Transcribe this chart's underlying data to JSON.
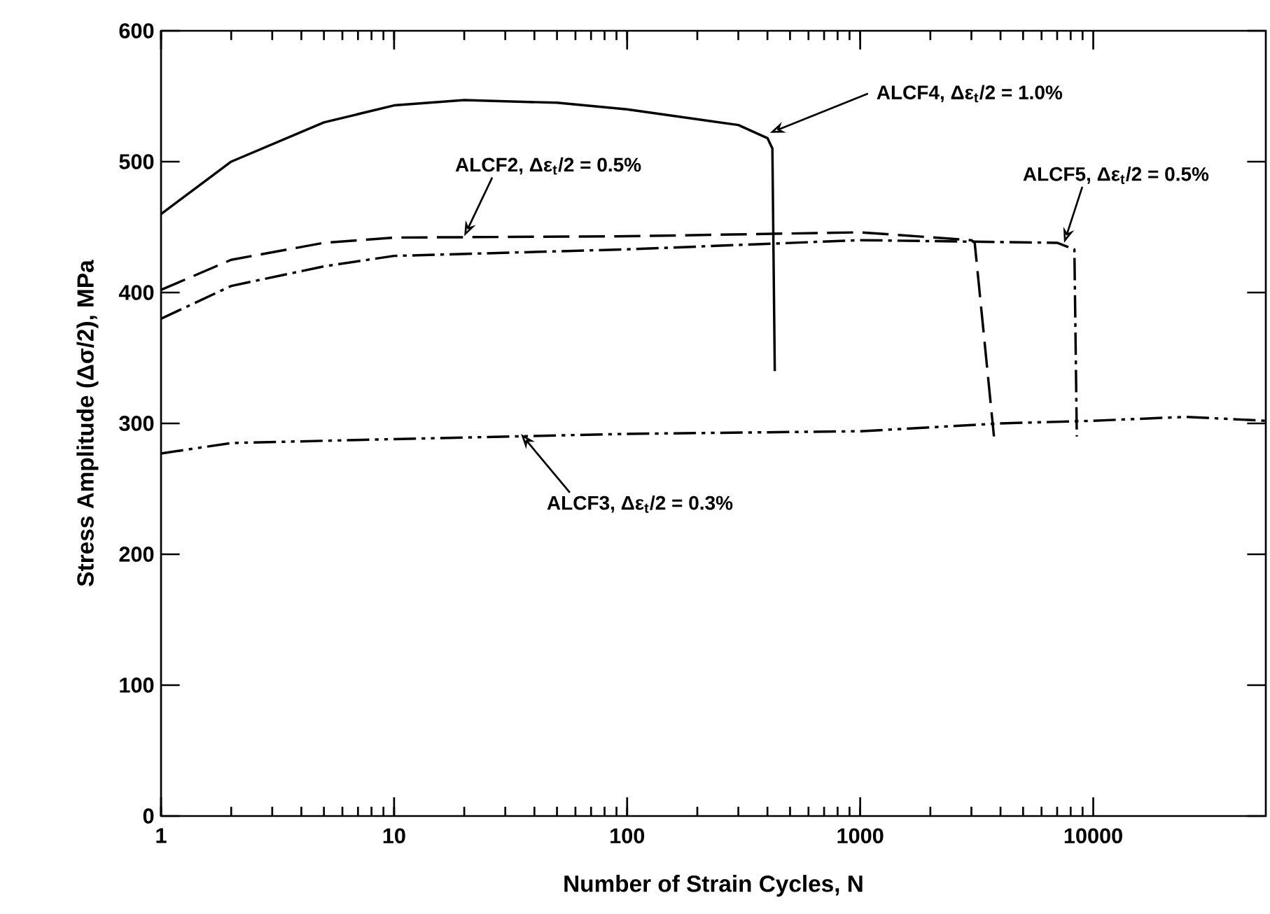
{
  "chart_data": {
    "type": "line",
    "xlabel": "Number of Strain Cycles, N",
    "ylabel": "Stress Amplitude (Δσ/2), MPa",
    "log": "x",
    "xlim": [
      1,
      55000
    ],
    "xticks": [
      1,
      10,
      100,
      1000,
      10000
    ],
    "ylim": [
      0,
      600
    ],
    "yticks": [
      0,
      100,
      200,
      300,
      400,
      500,
      600
    ],
    "marker": "none",
    "series": [
      {
        "color": "#000000",
        "line_style": "solid",
        "x": [
          1,
          2,
          5,
          10,
          20,
          50,
          100,
          300,
          400,
          420,
          430
        ],
        "values": [
          460,
          500,
          530,
          543,
          547,
          545,
          540,
          528,
          518,
          510,
          340
        ]
      },
      {
        "color": "#000000",
        "line_style": "dashed",
        "x": [
          1,
          2,
          5,
          10,
          100,
          1000,
          3000,
          3100,
          3750
        ],
        "values": [
          402,
          425,
          438,
          442,
          443,
          446,
          440,
          438,
          290
        ]
      },
      {
        "color": "#000000",
        "line_style": "dashdot",
        "x": [
          1,
          2,
          5,
          10,
          100,
          1000,
          7000,
          8300,
          8500
        ],
        "values": [
          380,
          405,
          420,
          428,
          433,
          440,
          438,
          433,
          290
        ]
      },
      {
        "color": "#000000",
        "line_style": "dashdotdot",
        "x": [
          1,
          2,
          10,
          100,
          1000,
          2000,
          4000,
          10000,
          25000,
          55000
        ],
        "values": [
          277,
          285,
          288,
          292,
          294,
          297,
          300,
          302,
          305,
          302
        ]
      }
    ],
    "annotations": [
      {
        "text": "ALCF4, Δε$_{t}$/2 = 1.0%",
        "x": 410,
        "y": 522
      },
      {
        "text": "ALCF2, Δε$_{t}$/2 = 0.5%",
        "x": 20,
        "y": 443
      },
      {
        "text": "ALCF5, Δε$_{t}$/2 = 0.5%",
        "x": 7500,
        "y": 438
      },
      {
        "text": "ALCF3, Δε$_{t}$/2 = 0.3%",
        "x": 35,
        "y": 292
      }
    ]
  }
}
